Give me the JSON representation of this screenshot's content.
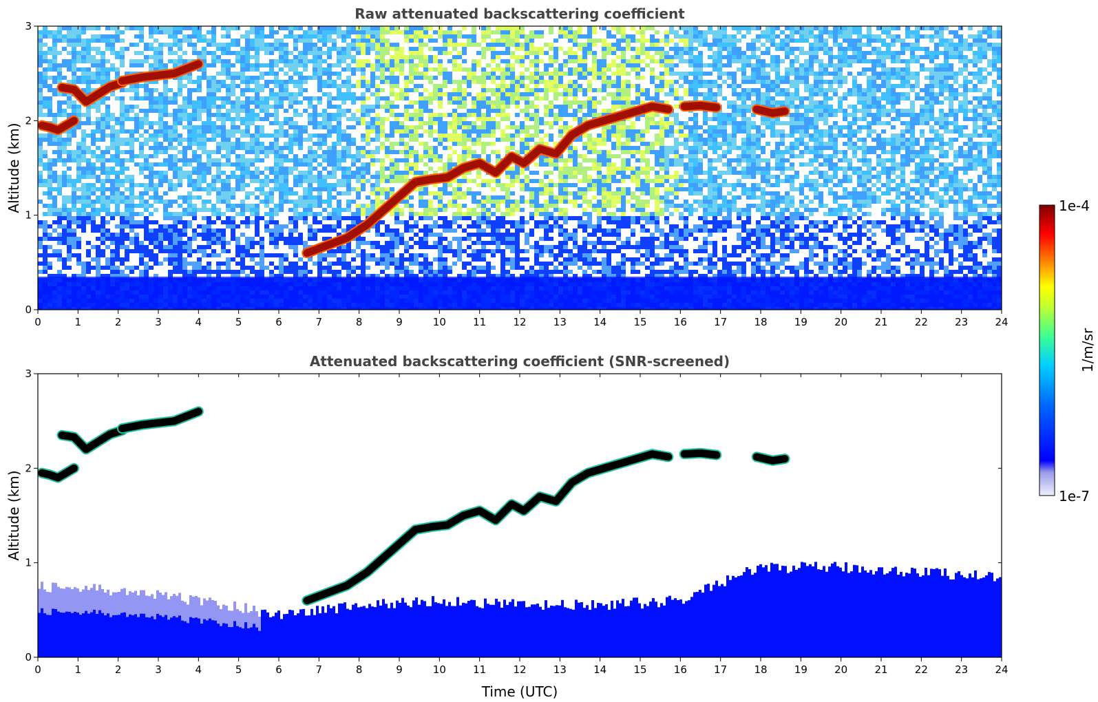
{
  "chart_data": [
    {
      "type": "heatmap",
      "title": "Raw attenuated backscattering coefficient",
      "xlabel": "",
      "ylabel": "Altitude (km)",
      "xlim": [
        0,
        24
      ],
      "ylim": [
        0,
        3
      ],
      "x_ticks": [
        "0",
        "1",
        "2",
        "3",
        "4",
        "5",
        "6",
        "7",
        "8",
        "9",
        "10",
        "11",
        "12",
        "13",
        "14",
        "15",
        "16",
        "17",
        "18",
        "19",
        "20",
        "21",
        "22",
        "23",
        "24"
      ],
      "y_ticks": [
        "0",
        "1",
        "2",
        "3"
      ],
      "layers": [
        {
          "name": "boundary layer",
          "x": [
            0,
            24
          ],
          "top": [
            0.35,
            0.35
          ]
        },
        {
          "name": "cloud",
          "x": [
            0.1,
            0.3,
            0.5,
            0.7,
            0.9
          ],
          "y": [
            1.95,
            1.93,
            1.9,
            1.95,
            2.0
          ]
        },
        {
          "name": "cloud",
          "x": [
            0.6,
            0.9,
            1.2,
            1.5,
            1.8,
            2.1
          ],
          "y": [
            2.35,
            2.33,
            2.2,
            2.28,
            2.36,
            2.4
          ]
        },
        {
          "name": "cloud",
          "x": [
            2.1,
            2.6,
            3.0,
            3.4,
            3.7,
            4.0
          ],
          "y": [
            2.42,
            2.46,
            2.48,
            2.5,
            2.55,
            2.6
          ]
        },
        {
          "name": "cloud",
          "x": [
            6.7,
            7.2,
            7.7,
            8.2,
            8.6,
            9.0,
            9.4,
            9.8,
            10.2,
            10.6,
            11.0,
            11.4,
            11.8,
            12.1,
            12.5,
            12.9,
            13.3,
            13.7,
            14.1,
            14.5,
            14.9,
            15.3,
            15.7
          ],
          "y": [
            0.6,
            0.68,
            0.76,
            0.9,
            1.05,
            1.2,
            1.35,
            1.38,
            1.4,
            1.5,
            1.55,
            1.45,
            1.62,
            1.55,
            1.7,
            1.65,
            1.85,
            1.95,
            2.0,
            2.05,
            2.1,
            2.15,
            2.12
          ]
        },
        {
          "name": "cloud",
          "x": [
            16.1,
            16.5,
            16.9
          ],
          "y": [
            2.15,
            2.16,
            2.14
          ]
        },
        {
          "name": "cloud",
          "x": [
            17.9,
            18.3,
            18.6
          ],
          "y": [
            2.12,
            2.08,
            2.1
          ]
        }
      ]
    },
    {
      "type": "heatmap",
      "title": "Attenuated backscattering coefficient (SNR-screened)",
      "xlabel": "Time (UTC)",
      "ylabel": "Altitude (km)",
      "xlim": [
        0,
        24
      ],
      "ylim": [
        0,
        3
      ],
      "x_ticks": [
        "0",
        "1",
        "2",
        "3",
        "4",
        "5",
        "6",
        "7",
        "8",
        "9",
        "10",
        "11",
        "12",
        "13",
        "14",
        "15",
        "16",
        "17",
        "18",
        "19",
        "20",
        "21",
        "22",
        "23",
        "24"
      ],
      "y_ticks": [
        "0",
        "1",
        "2",
        "3"
      ],
      "layers": [
        {
          "name": "boundary layer",
          "x": [
            0,
            2,
            4,
            6,
            7,
            8,
            10,
            12,
            14,
            16,
            17,
            18,
            20,
            22,
            24
          ],
          "top": [
            0.75,
            0.7,
            0.6,
            0.45,
            0.5,
            0.55,
            0.6,
            0.55,
            0.55,
            0.6,
            0.8,
            0.95,
            0.95,
            0.9,
            0.85
          ]
        },
        {
          "name": "cloud",
          "x": [
            0.1,
            0.3,
            0.5,
            0.7,
            0.9
          ],
          "y": [
            1.95,
            1.93,
            1.9,
            1.95,
            2.0
          ]
        },
        {
          "name": "cloud",
          "x": [
            0.6,
            0.9,
            1.2,
            1.5,
            1.8,
            2.1
          ],
          "y": [
            2.35,
            2.33,
            2.2,
            2.28,
            2.36,
            2.4
          ]
        },
        {
          "name": "cloud",
          "x": [
            2.1,
            2.6,
            3.0,
            3.4,
            3.7,
            4.0
          ],
          "y": [
            2.42,
            2.46,
            2.48,
            2.5,
            2.55,
            2.6
          ]
        },
        {
          "name": "cloud",
          "x": [
            6.7,
            7.2,
            7.7,
            8.2,
            8.6,
            9.0,
            9.4,
            9.8,
            10.2,
            10.6,
            11.0,
            11.4,
            11.8,
            12.1,
            12.5,
            12.9,
            13.3,
            13.7,
            14.1,
            14.5,
            14.9,
            15.3,
            15.7
          ],
          "y": [
            0.6,
            0.68,
            0.76,
            0.9,
            1.05,
            1.2,
            1.35,
            1.38,
            1.4,
            1.5,
            1.55,
            1.45,
            1.62,
            1.55,
            1.7,
            1.65,
            1.85,
            1.95,
            2.0,
            2.05,
            2.1,
            2.15,
            2.12
          ]
        },
        {
          "name": "cloud",
          "x": [
            16.1,
            16.5,
            16.9
          ],
          "y": [
            2.15,
            2.16,
            2.14
          ]
        },
        {
          "name": "cloud",
          "x": [
            17.9,
            18.3,
            18.6
          ],
          "y": [
            2.12,
            2.08,
            2.1
          ]
        }
      ]
    }
  ],
  "colorbar": {
    "label": "1/m/sr",
    "min_label": "1e-7",
    "max_label": "1e-4",
    "scale": "log",
    "colors": [
      "#f0f0ff",
      "#c8c8f0",
      "#9a9ae8",
      "#0000ff",
      "#0040ff",
      "#0080ff",
      "#00c0ff",
      "#00ffd0",
      "#60ff80",
      "#b0ff40",
      "#ffff00",
      "#ffb000",
      "#ff6000",
      "#ff0000",
      "#c00000",
      "#800000"
    ]
  }
}
